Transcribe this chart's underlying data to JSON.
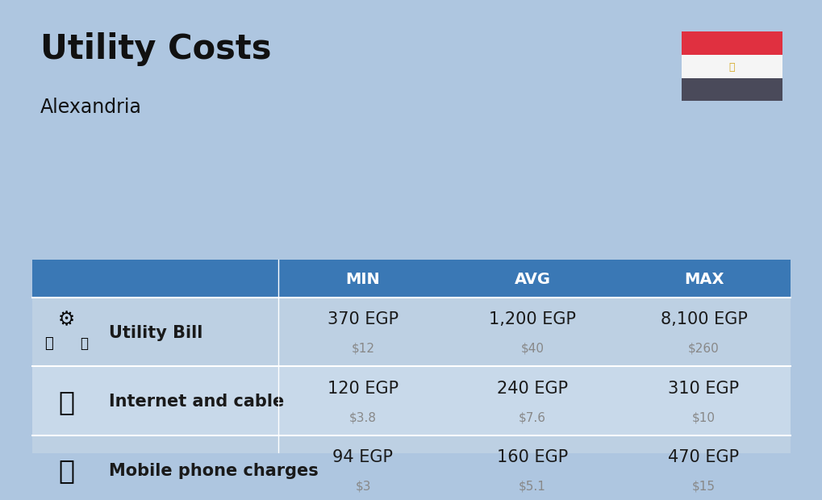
{
  "title": "Utility Costs",
  "subtitle": "Alexandria",
  "background_color": "#aec6e0",
  "table_header_color": "#3a78b5",
  "table_row_color1": "#bdd0e3",
  "table_row_color2": "#c8d9ea",
  "header_text_color": "#ffffff",
  "rows": [
    {
      "label": "Utility Bill",
      "min_egp": "370 EGP",
      "min_usd": "$12",
      "avg_egp": "1,200 EGP",
      "avg_usd": "$40",
      "max_egp": "8,100 EGP",
      "max_usd": "$260",
      "icon": "utility"
    },
    {
      "label": "Internet and cable",
      "min_egp": "120 EGP",
      "min_usd": "$3.8",
      "avg_egp": "240 EGP",
      "avg_usd": "$7.6",
      "max_egp": "310 EGP",
      "max_usd": "$10",
      "icon": "internet"
    },
    {
      "label": "Mobile phone charges",
      "min_egp": "94 EGP",
      "min_usd": "$3",
      "avg_egp": "160 EGP",
      "avg_usd": "$5.1",
      "max_egp": "470 EGP",
      "max_usd": "$15",
      "icon": "mobile"
    }
  ],
  "flag_red": "#e03040",
  "flag_white": "#f5f5f5",
  "flag_dark": "#4a4a5a",
  "flag_eagle_color": "#d4a820",
  "egp_fontsize": 15,
  "usd_fontsize": 11,
  "label_fontsize": 15,
  "header_fontsize": 14,
  "usd_color": "#888888",
  "label_color": "#1a1a1a",
  "egp_color": "#1a1a1a"
}
